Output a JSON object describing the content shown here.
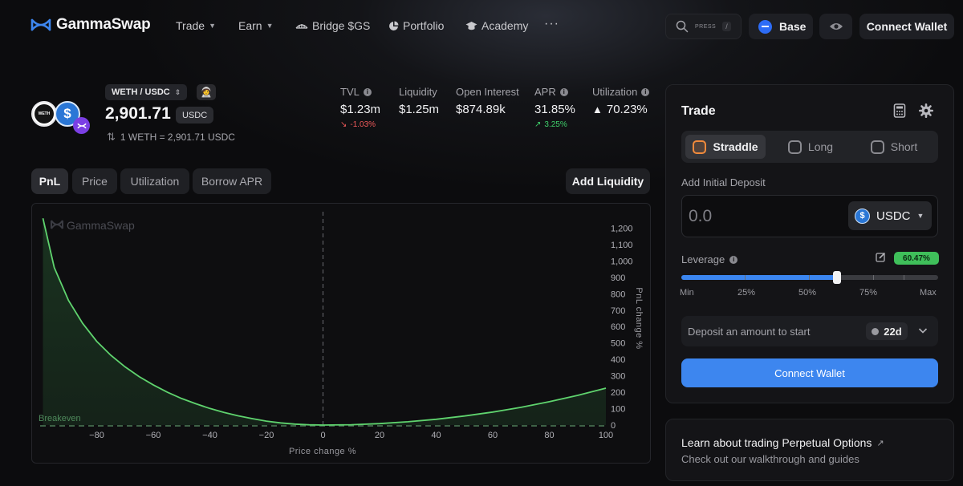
{
  "app": {
    "brand": "GammaSwap"
  },
  "nav": {
    "items": [
      {
        "label": "Trade",
        "dropdown": true
      },
      {
        "label": "Earn",
        "dropdown": true
      },
      {
        "label": "Bridge $GS",
        "icon": "bridge-icon"
      },
      {
        "label": "Portfolio",
        "icon": "pie-chart-icon"
      },
      {
        "label": "Academy",
        "icon": "graduation-cap-icon"
      }
    ],
    "more": "···",
    "search_hint": "PRESS",
    "search_key": "/",
    "network": "Base",
    "connect_wallet": "Connect Wallet"
  },
  "pair": {
    "name": "WETH / USDC",
    "token_a": "WETH",
    "price": "2,901.71",
    "price_unit": "USDC",
    "rate": "1 WETH = 2,901.71 USDC"
  },
  "stats": [
    {
      "label": "TVL",
      "info": true,
      "value": "$1.23m",
      "change": "-1.03%",
      "direction": "down"
    },
    {
      "label": "Liquidity",
      "info": false,
      "value": "$1.25m",
      "change": "",
      "direction": ""
    },
    {
      "label": "Open Interest",
      "info": false,
      "value": "$874.89k",
      "change": "",
      "direction": ""
    },
    {
      "label": "APR",
      "info": true,
      "value": "31.85%",
      "change": "3.25%",
      "direction": "up"
    },
    {
      "label": "Utilization",
      "info": true,
      "value": "70.23%",
      "change": "",
      "direction": "warning"
    }
  ],
  "chart_tabs": [
    "PnL",
    "Price",
    "Utilization",
    "Borrow APR"
  ],
  "active_chart_tab": "PnL",
  "add_liquidity": "Add Liquidity",
  "chart_data": {
    "type": "area",
    "watermark": "GammaSwap",
    "xlabel": "Price change %",
    "ylabel": "PnL change %",
    "x_ticks": [
      "−80",
      "−60",
      "−40",
      "−20",
      "0",
      "20",
      "40",
      "60",
      "80",
      "100"
    ],
    "y_ticks": [
      "0",
      "100",
      "200",
      "300",
      "400",
      "500",
      "600",
      "700",
      "800",
      "900",
      "1,000",
      "1,100",
      "1,200"
    ],
    "xlim": [
      -100,
      100
    ],
    "ylim": [
      0,
      1300
    ],
    "breakeven_label": "Breakeven",
    "breakeven_y": 0,
    "vertical_marker_x": 0,
    "x": [
      -99,
      -95,
      -90,
      -85,
      -80,
      -75,
      -70,
      -65,
      -60,
      -55,
      -50,
      -45,
      -40,
      -35,
      -30,
      -25,
      -20,
      -15,
      -10,
      -5,
      0,
      10,
      20,
      30,
      40,
      50,
      60,
      70,
      80,
      90,
      100
    ],
    "y": [
      1260,
      960,
      760,
      620,
      510,
      425,
      355,
      295,
      245,
      200,
      162,
      130,
      101,
      77,
      56,
      39,
      24,
      13,
      6,
      1.5,
      0,
      2,
      9,
      20,
      35,
      55,
      79,
      108,
      142,
      181,
      225
    ],
    "line_color": "#5fd36e",
    "fill_color": "#1a3320"
  },
  "trade": {
    "title": "Trade",
    "modes": [
      "Straddle",
      "Long",
      "Short"
    ],
    "active_mode": "Straddle",
    "deposit_label": "Add Initial Deposit",
    "deposit_value": "0.0",
    "deposit_token": "USDC",
    "leverage_label": "Leverage",
    "leverage_value": "60.47%",
    "leverage_fraction": 0.6047,
    "slider_labels": [
      "Min",
      "25%",
      "50%",
      "75%",
      "Max"
    ],
    "info_text": "Deposit an amount to start",
    "duration": "22d",
    "button": "Connect Wallet"
  },
  "learn": {
    "title": "Learn about trading Perpetual Options",
    "subtitle": "Check out our walkthrough and guides"
  },
  "colors": {
    "accent": "#3d86ef",
    "positive": "#3fcf6a",
    "negative": "#f05a5a",
    "leverage": "#3fbf5a"
  }
}
